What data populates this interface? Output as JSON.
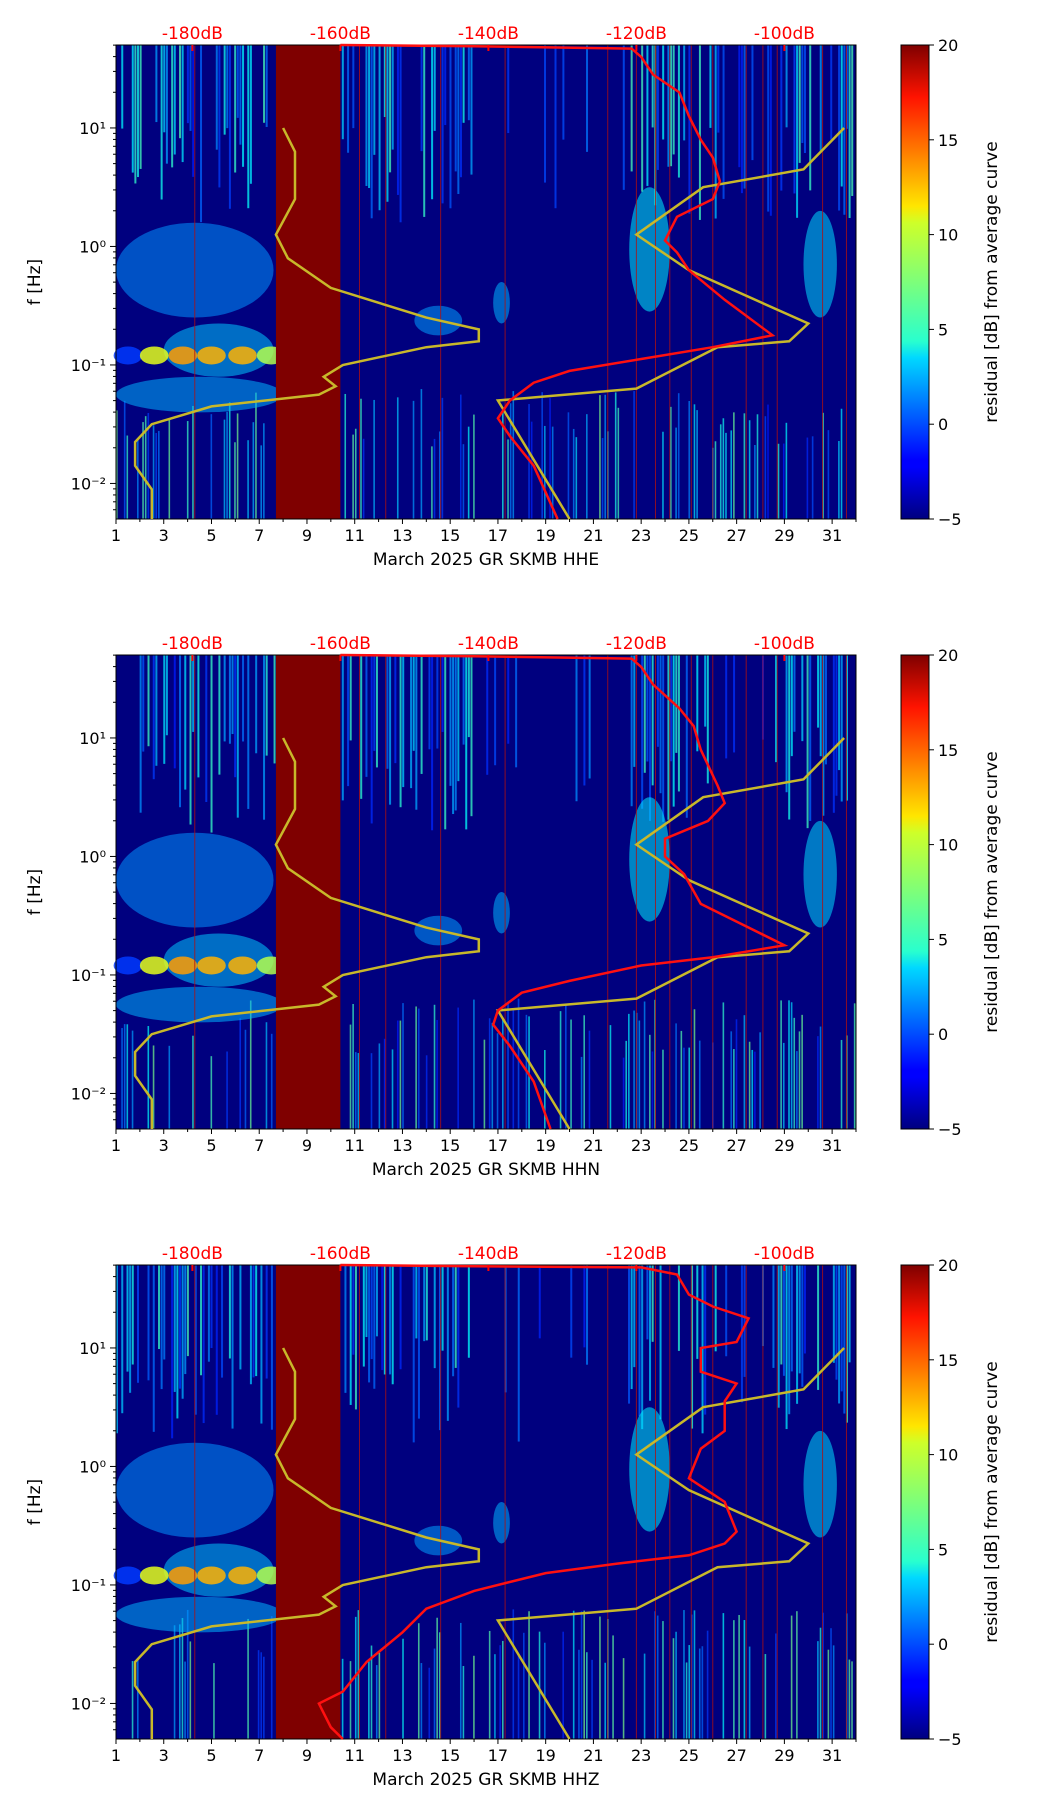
{
  "colors": {
    "background": "#00007f",
    "ppsd_curve": "#ff1010",
    "model_curve": "#c8b82a",
    "gap_fill": "#7f0000",
    "db_label": "#ff0000"
  },
  "colorbar": {
    "label": "residual [dB] from average curve",
    "vmin": -5,
    "vmax": 20,
    "ticks": [
      "20",
      "15",
      "10",
      "5",
      "0",
      "−5"
    ],
    "tick_values": [
      20,
      15,
      10,
      5,
      0,
      -5
    ]
  },
  "chart_data": [
    {
      "type": "heatmap",
      "title": "",
      "xlabel": "March 2025 GR SKMB  HHE",
      "ylabel": "f [Hz]",
      "xlim": [
        1,
        32
      ],
      "ylim_log10": [
        -2.3,
        1.7
      ],
      "x_ticks": [
        "1",
        "3",
        "5",
        "7",
        "9",
        "11",
        "13",
        "15",
        "17",
        "19",
        "21",
        "23",
        "25",
        "27",
        "29",
        "31"
      ],
      "y_ticks": [
        "10⁻²",
        "10⁻¹",
        "10⁰",
        "10¹"
      ],
      "y_tick_exponents": [
        -2,
        -1,
        0,
        1
      ],
      "db_axis": {
        "labels": [
          "-180dB",
          "-160dB",
          "-140dB",
          "-120dB",
          "-100dB"
        ],
        "days": [
          4.2,
          10.4,
          16.6,
          22.8,
          29.0
        ]
      },
      "gap": [
        7.7,
        10.4
      ],
      "ppsd_curve": [
        [
          10.4,
          1.7
        ],
        [
          16,
          1.69
        ],
        [
          22.6,
          1.67
        ],
        [
          23.0,
          1.6
        ],
        [
          23.5,
          1.45
        ],
        [
          24.6,
          1.3
        ],
        [
          25.0,
          1.1
        ],
        [
          25.5,
          0.9
        ],
        [
          26.0,
          0.75
        ],
        [
          26.3,
          0.55
        ],
        [
          26.0,
          0.4
        ],
        [
          24.5,
          0.25
        ],
        [
          24.0,
          0.05
        ],
        [
          24.5,
          -0.05
        ],
        [
          25.0,
          -0.2
        ],
        [
          26.5,
          -0.45
        ],
        [
          28.5,
          -0.75
        ],
        [
          26.0,
          -0.85
        ],
        [
          23.0,
          -0.95
        ],
        [
          20.0,
          -1.05
        ],
        [
          18.5,
          -1.15
        ],
        [
          17.5,
          -1.3
        ],
        [
          17.0,
          -1.45
        ],
        [
          17.5,
          -1.6
        ],
        [
          18.5,
          -1.85
        ],
        [
          19.5,
          -2.3
        ]
      ],
      "model_curve": [
        [
          8.0,
          1.0
        ],
        [
          8.5,
          0.8
        ],
        [
          8.5,
          0.4
        ],
        [
          7.7,
          0.1
        ],
        [
          8.2,
          -0.1
        ],
        [
          10.0,
          -0.35
        ],
        [
          14.0,
          -0.6
        ],
        [
          16.2,
          -0.7
        ],
        [
          16.2,
          -0.8
        ],
        [
          14.0,
          -0.85
        ],
        [
          10.5,
          -1.0
        ],
        [
          9.7,
          -1.1
        ],
        [
          10.2,
          -1.18
        ],
        [
          9.5,
          -1.25
        ],
        [
          5.0,
          -1.35
        ],
        [
          2.5,
          -1.5
        ],
        [
          1.8,
          -1.65
        ],
        [
          1.8,
          -1.85
        ],
        [
          2.5,
          -2.05
        ],
        [
          2.5,
          -2.3
        ]
      ],
      "model_curve_right": [
        [
          31.5,
          1.0
        ],
        [
          29.8,
          0.65
        ],
        [
          25.6,
          0.5
        ],
        [
          22.8,
          0.1
        ],
        [
          25.0,
          -0.2
        ],
        [
          30.0,
          -0.65
        ],
        [
          29.2,
          -0.8
        ],
        [
          26.2,
          -0.85
        ],
        [
          22.8,
          -1.2
        ],
        [
          17.0,
          -1.3
        ],
        [
          20.0,
          -2.3
        ]
      ]
    },
    {
      "type": "heatmap",
      "title": "",
      "xlabel": "March 2025 GR SKMB  HHN",
      "ylabel": "f [Hz]",
      "xlim": [
        1,
        32
      ],
      "ylim_log10": [
        -2.3,
        1.7
      ],
      "x_ticks": [
        "1",
        "3",
        "5",
        "7",
        "9",
        "11",
        "13",
        "15",
        "17",
        "19",
        "21",
        "23",
        "25",
        "27",
        "29",
        "31"
      ],
      "y_ticks": [
        "10⁻²",
        "10⁻¹",
        "10⁰",
        "10¹"
      ],
      "y_tick_exponents": [
        -2,
        -1,
        0,
        1
      ],
      "db_axis": {
        "labels": [
          "-180dB",
          "-160dB",
          "-140dB",
          "-120dB",
          "-100dB"
        ],
        "days": [
          4.2,
          10.4,
          16.6,
          22.8,
          29.0
        ]
      },
      "gap": [
        7.7,
        10.4
      ],
      "ppsd_curve": [
        [
          10.4,
          1.7
        ],
        [
          16,
          1.69
        ],
        [
          22.6,
          1.67
        ],
        [
          23.0,
          1.6
        ],
        [
          23.5,
          1.45
        ],
        [
          24.6,
          1.25
        ],
        [
          25.2,
          1.1
        ],
        [
          25.5,
          0.9
        ],
        [
          26.2,
          0.6
        ],
        [
          26.5,
          0.45
        ],
        [
          25.8,
          0.3
        ],
        [
          24.0,
          0.15
        ],
        [
          24.0,
          0.0
        ],
        [
          24.8,
          -0.15
        ],
        [
          25.5,
          -0.4
        ],
        [
          27.0,
          -0.55
        ],
        [
          29.0,
          -0.75
        ],
        [
          26.0,
          -0.85
        ],
        [
          23.0,
          -0.92
        ],
        [
          20.0,
          -1.05
        ],
        [
          18.0,
          -1.15
        ],
        [
          17.0,
          -1.3
        ],
        [
          16.8,
          -1.42
        ],
        [
          17.5,
          -1.6
        ],
        [
          18.5,
          -1.9
        ],
        [
          19.2,
          -2.3
        ]
      ],
      "model_curve": [
        [
          8.0,
          1.0
        ],
        [
          8.5,
          0.8
        ],
        [
          8.5,
          0.4
        ],
        [
          7.7,
          0.1
        ],
        [
          8.2,
          -0.1
        ],
        [
          10.0,
          -0.35
        ],
        [
          14.0,
          -0.6
        ],
        [
          16.2,
          -0.7
        ],
        [
          16.2,
          -0.8
        ],
        [
          14.0,
          -0.85
        ],
        [
          10.5,
          -1.0
        ],
        [
          9.7,
          -1.1
        ],
        [
          10.2,
          -1.18
        ],
        [
          9.5,
          -1.25
        ],
        [
          5.0,
          -1.35
        ],
        [
          2.5,
          -1.5
        ],
        [
          1.8,
          -1.65
        ],
        [
          1.8,
          -1.85
        ],
        [
          2.5,
          -2.05
        ],
        [
          2.5,
          -2.3
        ]
      ],
      "model_curve_right": [
        [
          31.5,
          1.0
        ],
        [
          29.8,
          0.65
        ],
        [
          25.6,
          0.5
        ],
        [
          22.8,
          0.1
        ],
        [
          25.0,
          -0.2
        ],
        [
          30.0,
          -0.65
        ],
        [
          29.2,
          -0.8
        ],
        [
          26.2,
          -0.85
        ],
        [
          22.8,
          -1.2
        ],
        [
          17.0,
          -1.3
        ],
        [
          20.0,
          -2.3
        ]
      ]
    },
    {
      "type": "heatmap",
      "title": "",
      "xlabel": "March 2025 GR SKMB  HHZ",
      "ylabel": "f [Hz]",
      "xlim": [
        1,
        32
      ],
      "ylim_log10": [
        -2.3,
        1.7
      ],
      "x_ticks": [
        "1",
        "3",
        "5",
        "7",
        "9",
        "11",
        "13",
        "15",
        "17",
        "19",
        "21",
        "23",
        "25",
        "27",
        "29",
        "31"
      ],
      "y_ticks": [
        "10⁻²",
        "10⁻¹",
        "10⁰",
        "10¹"
      ],
      "y_tick_exponents": [
        -2,
        -1,
        0,
        1
      ],
      "db_axis": {
        "labels": [
          "-180dB",
          "-160dB",
          "-140dB",
          "-120dB",
          "-100dB"
        ],
        "days": [
          4.2,
          10.4,
          16.6,
          22.8,
          29.0
        ]
      },
      "gap": [
        7.7,
        10.4
      ],
      "ppsd_curve": [
        [
          10.4,
          1.7
        ],
        [
          16,
          1.69
        ],
        [
          23.0,
          1.68
        ],
        [
          24.5,
          1.62
        ],
        [
          25.0,
          1.45
        ],
        [
          26.0,
          1.35
        ],
        [
          27.5,
          1.25
        ],
        [
          27.0,
          1.05
        ],
        [
          25.5,
          1.0
        ],
        [
          25.5,
          0.8
        ],
        [
          27.0,
          0.7
        ],
        [
          26.5,
          0.55
        ],
        [
          26.5,
          0.3
        ],
        [
          25.5,
          0.15
        ],
        [
          25.0,
          -0.1
        ],
        [
          26.5,
          -0.3
        ],
        [
          27.0,
          -0.55
        ],
        [
          26.5,
          -0.65
        ],
        [
          25.0,
          -0.75
        ],
        [
          22.0,
          -0.82
        ],
        [
          19.0,
          -0.9
        ],
        [
          16.0,
          -1.05
        ],
        [
          14.0,
          -1.2
        ],
        [
          13.0,
          -1.4
        ],
        [
          11.5,
          -1.65
        ],
        [
          10.5,
          -1.9
        ],
        [
          9.5,
          -2.0
        ],
        [
          10.0,
          -2.2
        ],
        [
          10.5,
          -2.3
        ]
      ],
      "model_curve": [
        [
          8.0,
          1.0
        ],
        [
          8.5,
          0.8
        ],
        [
          8.5,
          0.4
        ],
        [
          7.7,
          0.1
        ],
        [
          8.2,
          -0.1
        ],
        [
          10.0,
          -0.35
        ],
        [
          14.0,
          -0.6
        ],
        [
          16.2,
          -0.7
        ],
        [
          16.2,
          -0.8
        ],
        [
          14.0,
          -0.85
        ],
        [
          10.5,
          -1.0
        ],
        [
          9.7,
          -1.1
        ],
        [
          10.2,
          -1.18
        ],
        [
          9.5,
          -1.25
        ],
        [
          5.0,
          -1.35
        ],
        [
          2.5,
          -1.5
        ],
        [
          1.8,
          -1.65
        ],
        [
          1.8,
          -1.85
        ],
        [
          2.5,
          -2.05
        ],
        [
          2.5,
          -2.3
        ]
      ],
      "model_curve_right": [
        [
          31.5,
          1.0
        ],
        [
          29.8,
          0.65
        ],
        [
          25.6,
          0.5
        ],
        [
          22.8,
          0.1
        ],
        [
          25.0,
          -0.2
        ],
        [
          30.0,
          -0.65
        ],
        [
          29.2,
          -0.8
        ],
        [
          26.2,
          -0.85
        ],
        [
          22.8,
          -1.2
        ],
        [
          17.0,
          -1.3
        ],
        [
          20.0,
          -2.3
        ]
      ]
    }
  ]
}
